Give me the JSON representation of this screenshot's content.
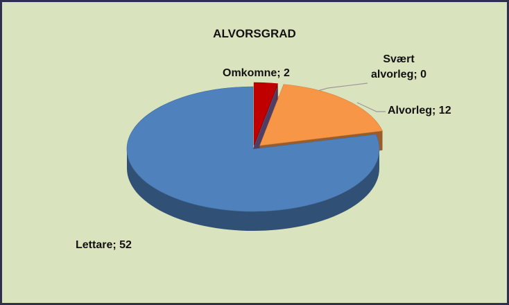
{
  "chart_data": {
    "type": "pie",
    "title": "ALVORSGRAD",
    "values": [
      2,
      0,
      12,
      52
    ],
    "value_labels": [
      "Omkomne; 2",
      "Svært alvorleg; 0",
      "Alvorleg; 12",
      "Lettare; 52"
    ],
    "colors": [
      "#c00000",
      "#8064a2",
      "#f79646",
      "#4f81bd"
    ]
  }
}
